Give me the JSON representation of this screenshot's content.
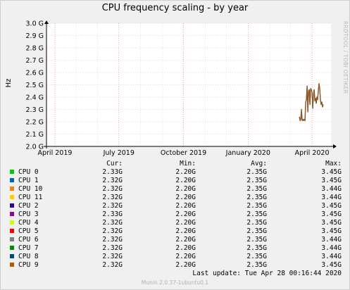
{
  "chart_data": {
    "type": "line",
    "title": "CPU frequency scaling - by year",
    "ylabel": "Hz",
    "side_label": "RRDTOOL / TOBI OETIKER",
    "ylim": [
      2.0,
      3.0
    ],
    "y_ticks": [
      "2.0 G",
      "2.1 G",
      "2.2 G",
      "2.3 G",
      "2.4 G",
      "2.5 G",
      "2.6 G",
      "2.7 G",
      "2.8 G",
      "2.9 G",
      "3.0 G"
    ],
    "x_ticks": [
      "April 2019",
      "July 2019",
      "October 2019",
      "January 2020",
      "April 2020"
    ],
    "x_range": [
      "2019-03-20",
      "2020-04-28"
    ],
    "x_tick_dates": [
      "2019-04-01",
      "2019-07-01",
      "2019-10-01",
      "2020-01-01",
      "2020-04-01"
    ],
    "grid": true,
    "series_color": "#8b5a2b",
    "series_points": [
      [
        "2020-03-14",
        2.24
      ],
      [
        "2020-03-15",
        2.21
      ],
      [
        "2020-03-16",
        2.22
      ],
      [
        "2020-03-17",
        2.3
      ],
      [
        "2020-03-18",
        2.21
      ],
      [
        "2020-03-19",
        2.22
      ],
      [
        "2020-03-20",
        2.21
      ],
      [
        "2020-03-21",
        2.22
      ],
      [
        "2020-03-22",
        2.21
      ],
      [
        "2020-03-23",
        2.36
      ],
      [
        "2020-03-24",
        2.38
      ],
      [
        "2020-03-25",
        2.49
      ],
      [
        "2020-03-26",
        2.28
      ],
      [
        "2020-03-27",
        2.45
      ],
      [
        "2020-03-28",
        2.46
      ],
      [
        "2020-03-29",
        2.34
      ],
      [
        "2020-03-30",
        2.47
      ],
      [
        "2020-03-31",
        2.46
      ],
      [
        "2020-04-01",
        2.44
      ],
      [
        "2020-04-02",
        2.31
      ],
      [
        "2020-04-03",
        2.42
      ],
      [
        "2020-04-04",
        2.46
      ],
      [
        "2020-04-05",
        2.37
      ],
      [
        "2020-04-06",
        2.39
      ],
      [
        "2020-04-07",
        2.35
      ],
      [
        "2020-04-08",
        2.4
      ],
      [
        "2020-04-09",
        2.38
      ],
      [
        "2020-04-10",
        2.45
      ],
      [
        "2020-04-11",
        2.51
      ],
      [
        "2020-04-12",
        2.47
      ],
      [
        "2020-04-13",
        2.38
      ],
      [
        "2020-04-14",
        2.34
      ],
      [
        "2020-04-15",
        2.36
      ],
      [
        "2020-04-16",
        2.32
      ],
      [
        "2020-04-17",
        2.34
      ]
    ],
    "legend_headers": [
      "Cur:",
      "Min:",
      "Avg:",
      "Max:"
    ],
    "legend": [
      {
        "name": "CPU 0",
        "color": "#00cc00",
        "cur": "2.33G",
        "min": "2.20G",
        "avg": "2.35G",
        "max": "3.45G"
      },
      {
        "name": "CPU 1",
        "color": "#0066b3",
        "cur": "2.32G",
        "min": "2.20G",
        "avg": "2.35G",
        "max": "3.45G"
      },
      {
        "name": "CPU 10",
        "color": "#ff8000",
        "cur": "2.32G",
        "min": "2.20G",
        "avg": "2.35G",
        "max": "3.44G"
      },
      {
        "name": "CPU 11",
        "color": "#ffcc00",
        "cur": "2.32G",
        "min": "2.20G",
        "avg": "2.35G",
        "max": "3.44G"
      },
      {
        "name": "CPU 2",
        "color": "#330099",
        "cur": "2.32G",
        "min": "2.20G",
        "avg": "2.35G",
        "max": "3.45G"
      },
      {
        "name": "CPU 3",
        "color": "#990099",
        "cur": "2.33G",
        "min": "2.20G",
        "avg": "2.35G",
        "max": "3.45G"
      },
      {
        "name": "CPU 4",
        "color": "#ccff00",
        "cur": "2.32G",
        "min": "2.20G",
        "avg": "2.35G",
        "max": "3.45G"
      },
      {
        "name": "CPU 5",
        "color": "#ff0000",
        "cur": "2.32G",
        "min": "2.20G",
        "avg": "2.35G",
        "max": "3.45G"
      },
      {
        "name": "CPU 6",
        "color": "#808080",
        "cur": "2.32G",
        "min": "2.20G",
        "avg": "2.35G",
        "max": "3.44G"
      },
      {
        "name": "CPU 7",
        "color": "#008f00",
        "cur": "2.32G",
        "min": "2.20G",
        "avg": "2.35G",
        "max": "3.44G"
      },
      {
        "name": "CPU 8",
        "color": "#00487d",
        "cur": "2.32G",
        "min": "2.20G",
        "avg": "2.35G",
        "max": "3.44G"
      },
      {
        "name": "CPU 9",
        "color": "#b35a00",
        "cur": "2.32G",
        "min": "2.20G",
        "avg": "2.35G",
        "max": "3.45G"
      }
    ]
  },
  "last_update": "Last update: Tue Apr 28 00:16:44 2020",
  "footer": "Munin 2.0.37-1ubuntu0.1"
}
